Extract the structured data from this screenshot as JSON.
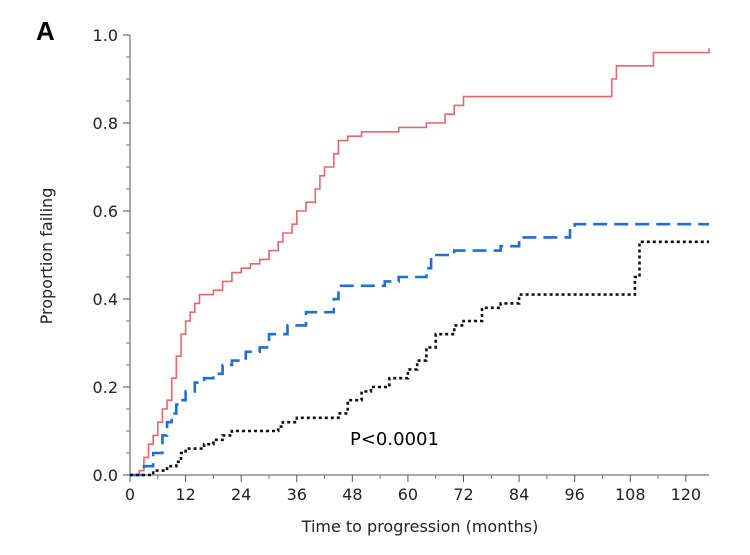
{
  "panel_label": "A",
  "chart_data": {
    "type": "line",
    "title": "",
    "xlabel": "Time to progression (months)",
    "ylabel": "Proportion failing",
    "xlim": [
      0,
      125
    ],
    "ylim": [
      0,
      1.0
    ],
    "x_ticks": [
      0,
      12,
      24,
      36,
      48,
      60,
      72,
      84,
      96,
      108,
      120
    ],
    "y_ticks": [
      0.0,
      0.2,
      0.4,
      0.6,
      0.8,
      1.0
    ],
    "y_tick_labels": [
      "0.0",
      "0.2",
      "0.4",
      "0.6",
      "0.8",
      "1.0"
    ],
    "grid": false,
    "legend": "none",
    "annotation": "P<0.0001",
    "series": [
      {
        "color": "#e8676b",
        "style": "solid",
        "points": [
          [
            0,
            0
          ],
          [
            1,
            0
          ],
          [
            2,
            0.01
          ],
          [
            3,
            0.04
          ],
          [
            4,
            0.07
          ],
          [
            5,
            0.09
          ],
          [
            6,
            0.12
          ],
          [
            7,
            0.15
          ],
          [
            8,
            0.17
          ],
          [
            9,
            0.22
          ],
          [
            10,
            0.27
          ],
          [
            11,
            0.32
          ],
          [
            12,
            0.35
          ],
          [
            13,
            0.37
          ],
          [
            14,
            0.39
          ],
          [
            15,
            0.41
          ],
          [
            18,
            0.42
          ],
          [
            20,
            0.44
          ],
          [
            22,
            0.46
          ],
          [
            24,
            0.47
          ],
          [
            26,
            0.48
          ],
          [
            28,
            0.49
          ],
          [
            30,
            0.51
          ],
          [
            32,
            0.53
          ],
          [
            33,
            0.55
          ],
          [
            35,
            0.57
          ],
          [
            36,
            0.6
          ],
          [
            38,
            0.62
          ],
          [
            40,
            0.65
          ],
          [
            41,
            0.68
          ],
          [
            42,
            0.7
          ],
          [
            44,
            0.73
          ],
          [
            45,
            0.76
          ],
          [
            47,
            0.77
          ],
          [
            50,
            0.78
          ],
          [
            58,
            0.79
          ],
          [
            64,
            0.8
          ],
          [
            68,
            0.82
          ],
          [
            70,
            0.84
          ],
          [
            72,
            0.86
          ],
          [
            85,
            0.86
          ],
          [
            103,
            0.86
          ],
          [
            104,
            0.9
          ],
          [
            105,
            0.93
          ],
          [
            112,
            0.93
          ],
          [
            113,
            0.96
          ],
          [
            125,
            0.97
          ]
        ]
      },
      {
        "color": "#1f6fd1",
        "style": "dashed",
        "points": [
          [
            0,
            0
          ],
          [
            2,
            0
          ],
          [
            3,
            0.02
          ],
          [
            5,
            0.05
          ],
          [
            7,
            0.09
          ],
          [
            8,
            0.12
          ],
          [
            9,
            0.14
          ],
          [
            10,
            0.16
          ],
          [
            11,
            0.17
          ],
          [
            12,
            0.19
          ],
          [
            14,
            0.21
          ],
          [
            16,
            0.22
          ],
          [
            18,
            0.23
          ],
          [
            20,
            0.25
          ],
          [
            22,
            0.26
          ],
          [
            25,
            0.28
          ],
          [
            28,
            0.29
          ],
          [
            30,
            0.32
          ],
          [
            34,
            0.34
          ],
          [
            38,
            0.37
          ],
          [
            44,
            0.4
          ],
          [
            45,
            0.43
          ],
          [
            55,
            0.44
          ],
          [
            58,
            0.45
          ],
          [
            64,
            0.47
          ],
          [
            65,
            0.5
          ],
          [
            70,
            0.51
          ],
          [
            80,
            0.52
          ],
          [
            84,
            0.54
          ],
          [
            95,
            0.56
          ],
          [
            96,
            0.57
          ],
          [
            125,
            0.57
          ]
        ]
      },
      {
        "color": "#111111",
        "style": "dotted",
        "points": [
          [
            0,
            0
          ],
          [
            4,
            0
          ],
          [
            5,
            0.01
          ],
          [
            8,
            0.02
          ],
          [
            10,
            0.03
          ],
          [
            11,
            0.05
          ],
          [
            12,
            0.06
          ],
          [
            16,
            0.07
          ],
          [
            18,
            0.08
          ],
          [
            20,
            0.09
          ],
          [
            22,
            0.1
          ],
          [
            32,
            0.11
          ],
          [
            33,
            0.12
          ],
          [
            36,
            0.13
          ],
          [
            45,
            0.14
          ],
          [
            47,
            0.17
          ],
          [
            50,
            0.19
          ],
          [
            52,
            0.2
          ],
          [
            56,
            0.22
          ],
          [
            60,
            0.24
          ],
          [
            62,
            0.26
          ],
          [
            64,
            0.29
          ],
          [
            66,
            0.32
          ],
          [
            70,
            0.34
          ],
          [
            72,
            0.35
          ],
          [
            76,
            0.38
          ],
          [
            80,
            0.39
          ],
          [
            84,
            0.41
          ],
          [
            108,
            0.41
          ],
          [
            109,
            0.45
          ],
          [
            110,
            0.53
          ],
          [
            125,
            0.53
          ]
        ]
      }
    ]
  }
}
